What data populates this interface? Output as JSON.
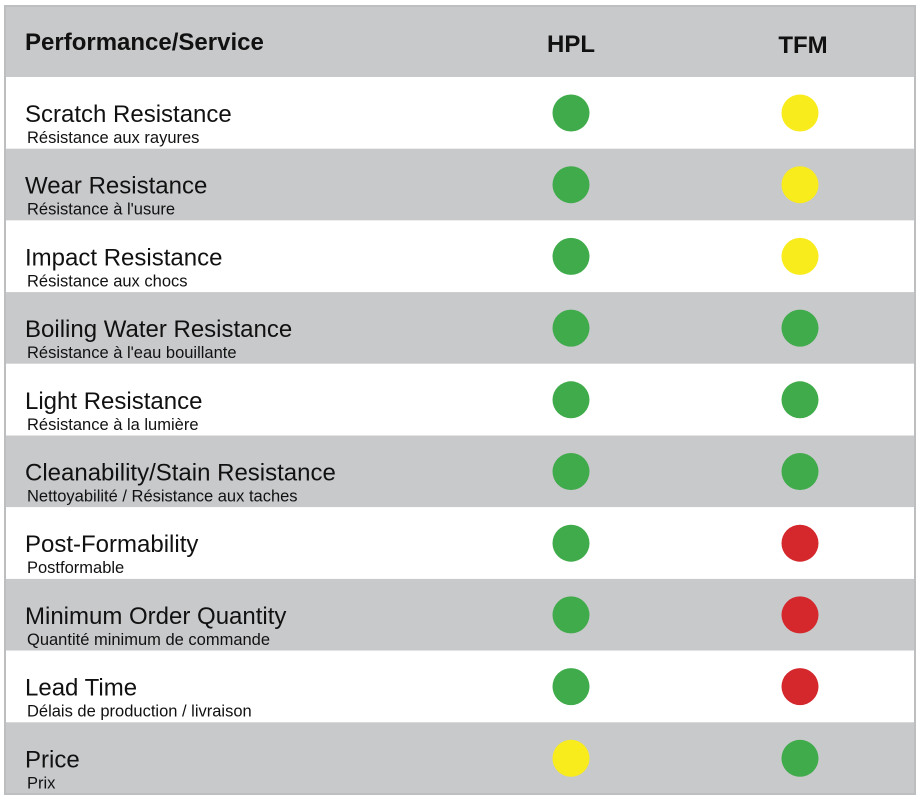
{
  "header": {
    "label": "Performance/Service",
    "columns": [
      "HPL",
      "TFM"
    ]
  },
  "table": {
    "rows": [
      {
        "title": "Scratch Resistance",
        "subtitle": "Résistance aux rayures",
        "ratings": [
          "#3fab4a",
          "#f8ec1c"
        ]
      },
      {
        "title": "Wear Resistance",
        "subtitle": "Résistance à l'usure",
        "ratings": [
          "#3fab4a",
          "#f8ec1c"
        ]
      },
      {
        "title": "Impact Resistance",
        "subtitle": "Résistance aux chocs",
        "ratings": [
          "#3fab4a",
          "#f8ec1c"
        ]
      },
      {
        "title": "Boiling Water Resistance",
        "subtitle": "Résistance à l'eau bouillante",
        "ratings": [
          "#3fab4a",
          "#3fab4a"
        ]
      },
      {
        "title": "Light Resistance",
        "subtitle": "Résistance à la lumière",
        "ratings": [
          "#3fab4a",
          "#3fab4a"
        ]
      },
      {
        "title": "Cleanability/Stain Resistance",
        "subtitle": "Nettoyabilité / Résistance aux taches",
        "ratings": [
          "#3fab4a",
          "#3fab4a"
        ]
      },
      {
        "title": "Post-Formability",
        "subtitle": "Postformable",
        "ratings": [
          "#3fab4a",
          "#d4282d"
        ]
      },
      {
        "title": "Minimum Order Quantity",
        "subtitle": "Quantité minimum de commande",
        "ratings": [
          "#3fab4a",
          "#d4282d"
        ]
      },
      {
        "title": "Lead Time",
        "subtitle": "Délais de production / livraison",
        "ratings": [
          "#3fab4a",
          "#d4282d"
        ]
      },
      {
        "title": "Price",
        "subtitle": "Prix",
        "ratings": [
          "#f8ec1c",
          "#3fab4a"
        ]
      }
    ]
  }
}
